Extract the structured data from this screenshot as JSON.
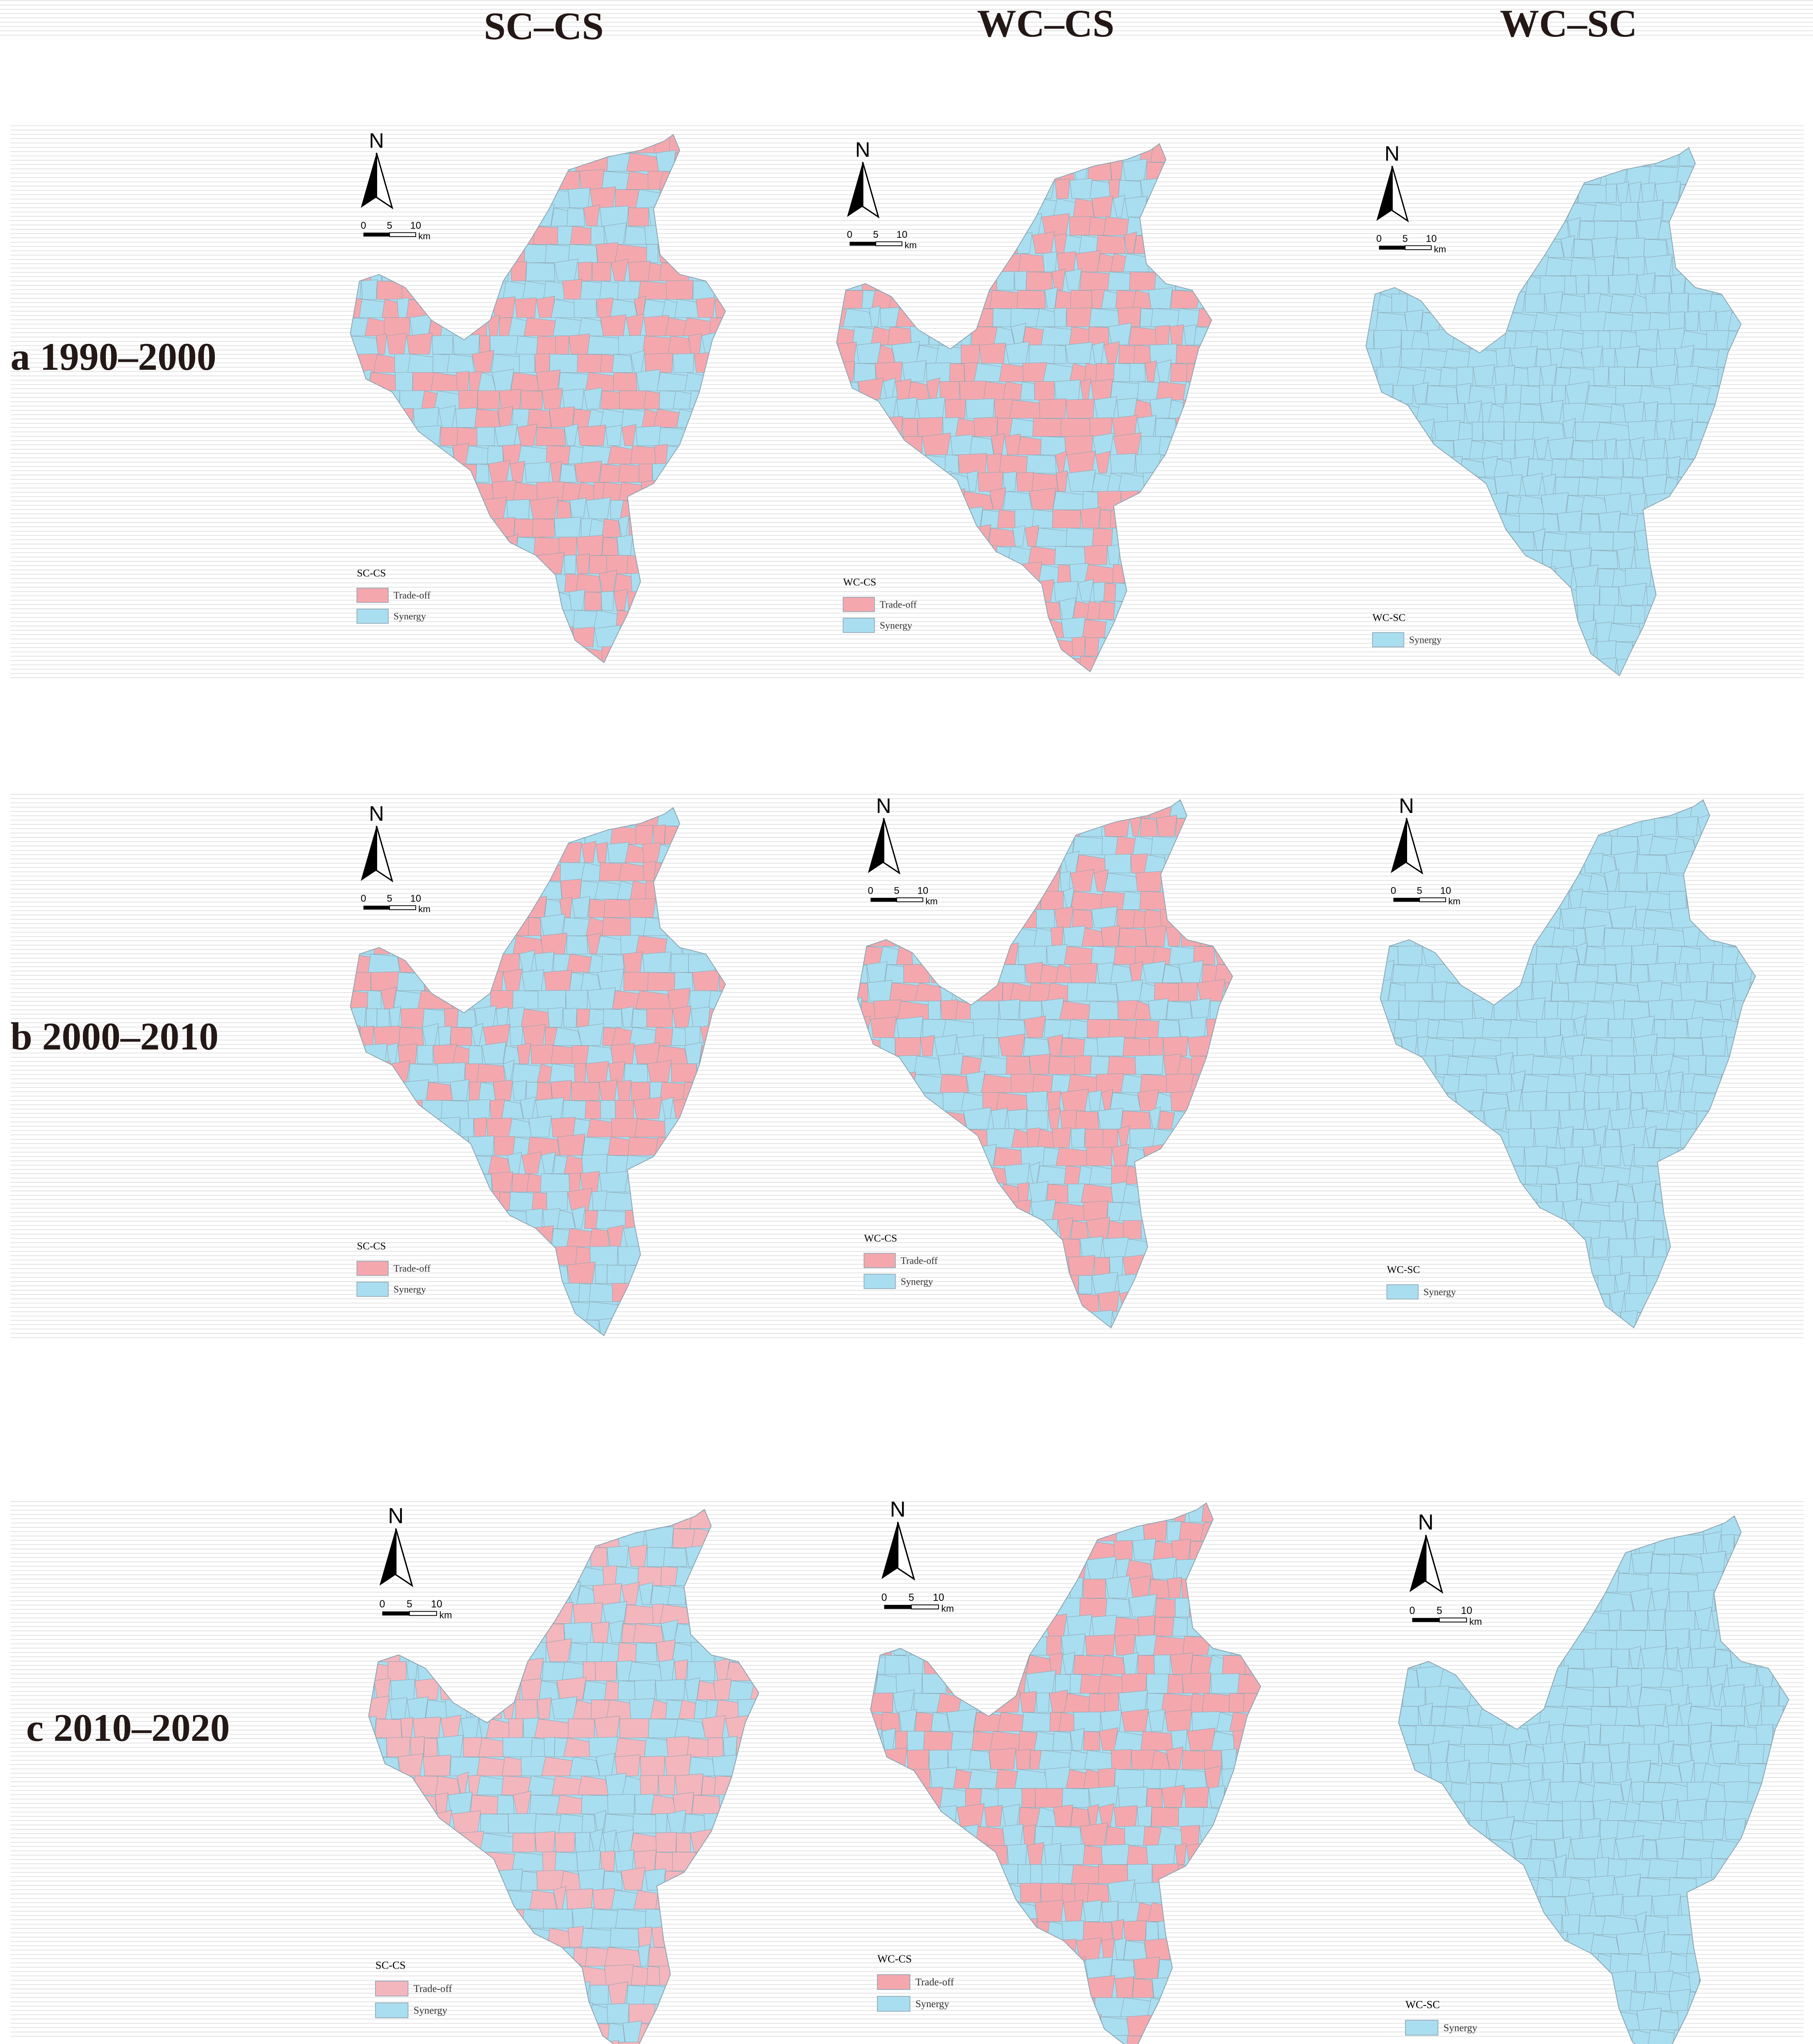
{
  "columns": [
    "SC–CS",
    "WC–CS",
    "WC–SC"
  ],
  "north": "N",
  "scale": {
    "ticks": [
      "0",
      "5",
      "10"
    ],
    "unit": "km"
  },
  "rows": [
    {
      "label": "a 1990–2000",
      "panels": [
        {
          "legend_title": "SC-CS",
          "items": [
            {
              "label": "Trade-off",
              "color": "#f4a8ae"
            },
            {
              "label": "Synergy",
              "color": "#a9def0"
            }
          ]
        },
        {
          "legend_title": "WC-CS",
          "items": [
            {
              "label": "Trade-off",
              "color": "#f4a8ae"
            },
            {
              "label": "Synergy",
              "color": "#a9def0"
            }
          ]
        },
        {
          "legend_title": "WC-SC",
          "items": [
            {
              "label": "Synergy",
              "color": "#a9def0"
            }
          ]
        }
      ]
    },
    {
      "label": "b 2000–2010",
      "panels": [
        {
          "legend_title": "SC-CS",
          "items": [
            {
              "label": "Trade-off",
              "color": "#f4a8ae"
            },
            {
              "label": "Synergy",
              "color": "#a9def0"
            }
          ]
        },
        {
          "legend_title": "WC-CS",
          "items": [
            {
              "label": "Trade-off",
              "color": "#f4a8ae"
            },
            {
              "label": "Synergy",
              "color": "#a9def0"
            }
          ]
        },
        {
          "legend_title": "WC-SC",
          "items": [
            {
              "label": "Synergy",
              "color": "#a9def0"
            }
          ]
        }
      ]
    },
    {
      "label": "c 2010–2020",
      "panels": [
        {
          "legend_title": "SC-CS",
          "items": [
            {
              "label": "Trade-off",
              "color": "#f4b6bd"
            },
            {
              "label": "Synergy",
              "color": "#a9def0"
            }
          ]
        },
        {
          "legend_title": "WC-CS",
          "items": [
            {
              "label": "Trade-off",
              "color": "#f4a8ae"
            },
            {
              "label": "Synergy",
              "color": "#a9def0"
            }
          ]
        },
        {
          "legend_title": "WC-SC",
          "items": [
            {
              "label": "Synergy",
              "color": "#a9def0"
            }
          ]
        }
      ]
    }
  ]
}
